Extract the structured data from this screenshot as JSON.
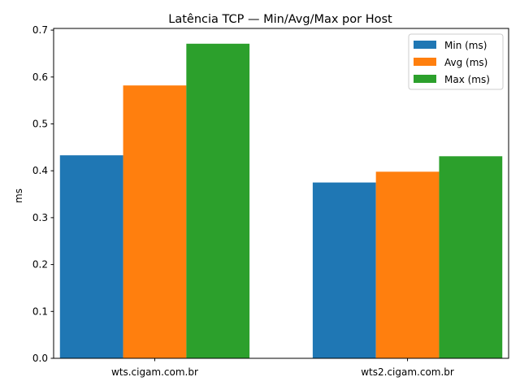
{
  "chart_data": {
    "type": "bar",
    "title": "Latência TCP — Min/Avg/Max por Host",
    "xlabel": "",
    "ylabel": "ms",
    "categories": [
      "wts.cigam.com.br",
      "wts2.cigam.com.br"
    ],
    "series": [
      {
        "name": "Min (ms)",
        "values": [
          0.433,
          0.375
        ],
        "color": "#1f77b4"
      },
      {
        "name": "Avg (ms)",
        "values": [
          0.582,
          0.398
        ],
        "color": "#ff7f0e"
      },
      {
        "name": "Max (ms)",
        "values": [
          0.671,
          0.431
        ],
        "color": "#2ca02c"
      }
    ],
    "ylim": [
      0,
      0.7036
    ],
    "yticks": [
      "0.0",
      "0.1",
      "0.2",
      "0.3",
      "0.4",
      "0.5",
      "0.6",
      "0.7"
    ],
    "legend_position": "top-right",
    "grid": false
  }
}
